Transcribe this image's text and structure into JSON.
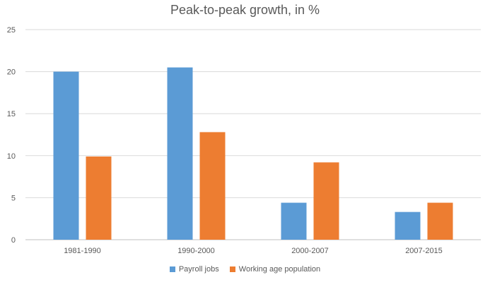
{
  "chart_data": {
    "type": "bar",
    "title": "Peak-to-peak growth, in %",
    "categories": [
      "1981-1990",
      "1990-2000",
      "2000-2007",
      "2007-2015"
    ],
    "series": [
      {
        "name": "Payroll jobs",
        "values": [
          20.0,
          20.5,
          4.4,
          3.3
        ],
        "color": "#5b9bd5"
      },
      {
        "name": "Working age population",
        "values": [
          9.9,
          12.8,
          9.2,
          4.4
        ],
        "color": "#ed7d31"
      }
    ],
    "ylim": [
      0,
      25
    ],
    "yticks": [
      "0",
      "5",
      "10",
      "15",
      "20",
      "25"
    ],
    "grid": true,
    "legend_position": "bottom"
  }
}
